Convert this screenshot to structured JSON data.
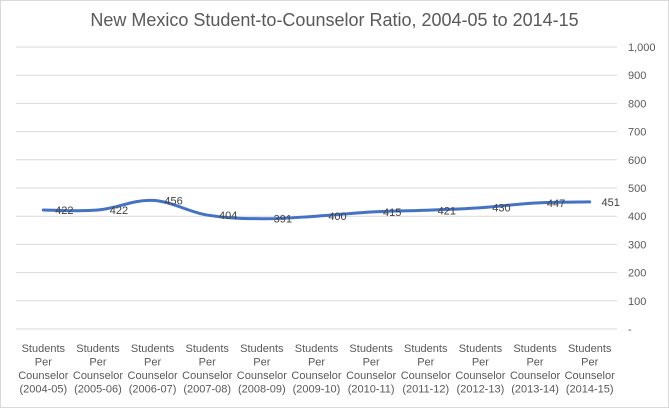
{
  "chart_data": {
    "type": "line",
    "title": "New Mexico Student-to-Counselor Ratio, 2004-05 to 2014-15",
    "categories": [
      [
        "Students",
        "Per",
        "Counselor",
        "(2004-05)"
      ],
      [
        "Students",
        "Per",
        "Counselor",
        "(2005-06)"
      ],
      [
        "Students",
        "Per",
        "Counselor",
        "(2006-07)"
      ],
      [
        "Students",
        "Per",
        "Counselor",
        "(2007-08)"
      ],
      [
        "Students",
        "Per",
        "Counselor",
        "(2008-09)"
      ],
      [
        "Students",
        "Per",
        "Counselor",
        "(2009-10)"
      ],
      [
        "Students",
        "Per",
        "Counselor",
        "(2010-11)"
      ],
      [
        "Students",
        "Per",
        "Counselor",
        "(2011-12)"
      ],
      [
        "Students",
        "Per",
        "Counselor",
        "(2012-13)"
      ],
      [
        "Students",
        "Per",
        "Counselor",
        "(2013-14)"
      ],
      [
        "Students",
        "Per",
        "Counselor",
        "(2014-15)"
      ]
    ],
    "series": [
      {
        "values": [
          422,
          422,
          456,
          404,
          391,
          400,
          415,
          421,
          430,
          447,
          451
        ]
      }
    ],
    "data_labels": [
      "422",
      "422",
      "456",
      "404",
      "391",
      "400",
      "415",
      "421",
      "430",
      "447",
      "451"
    ],
    "y_ticks": [
      "-",
      "100",
      "200",
      "300",
      "400",
      "500",
      "600",
      "700",
      "800",
      "900",
      "1,000"
    ],
    "ylim": [
      0,
      1000
    ],
    "y_axis_side": "right",
    "grid": true,
    "line_color": "#4472c4",
    "grid_color": "#d9d9d9"
  }
}
